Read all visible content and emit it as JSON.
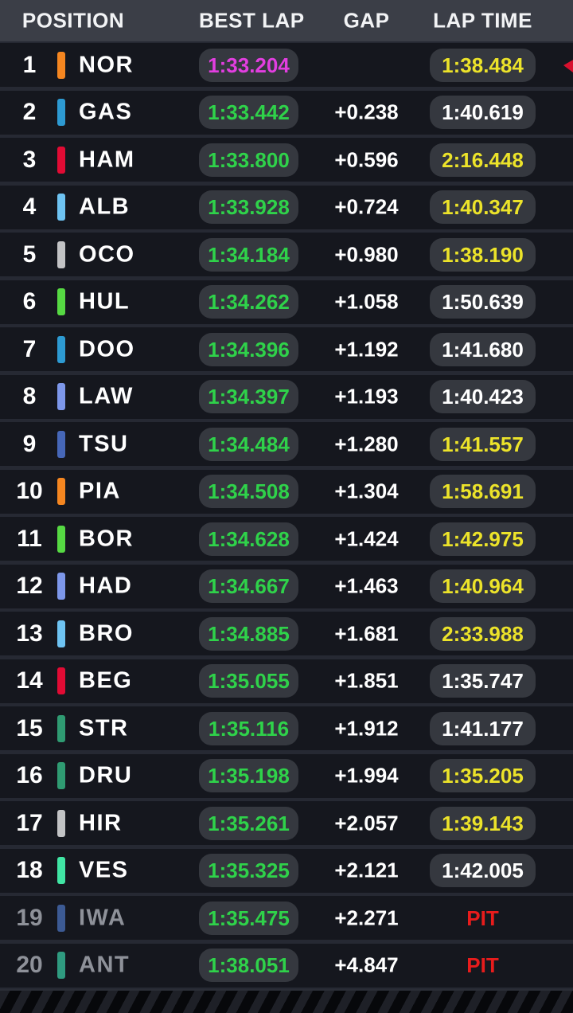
{
  "header": {
    "position_label": "POSITION",
    "best_lap_label": "BEST LAP",
    "gap_label": "GAP",
    "lap_time_label": "LAP TIME"
  },
  "palette": {
    "row_bg": "#15171e",
    "separator_bg": "#262933",
    "header_bg": "#3b3e47",
    "pill_bg": "#35383f",
    "green": "#2fd24a",
    "purple": "#e23ee0",
    "yellow": "#ece32a",
    "white": "#ffffff",
    "red": "#e81c1c",
    "muted": "#8e9199"
  },
  "table": {
    "rows": [
      {
        "pos": "1",
        "code": "NOR",
        "team_color": "#F58620",
        "best": "1:33.204",
        "best_color": "purple",
        "gap": "",
        "lap": "1:38.484",
        "lap_color": "yellow",
        "lap_pill": true,
        "muted": false,
        "edge_marker": true
      },
      {
        "pos": "2",
        "code": "GAS",
        "team_color": "#2D9AD2",
        "best": "1:33.442",
        "best_color": "green",
        "gap": "+0.238",
        "lap": "1:40.619",
        "lap_color": "white",
        "lap_pill": true,
        "muted": false,
        "edge_marker": false
      },
      {
        "pos": "3",
        "code": "HAM",
        "team_color": "#E10B34",
        "best": "1:33.800",
        "best_color": "green",
        "gap": "+0.596",
        "lap": "2:16.448",
        "lap_color": "yellow",
        "lap_pill": true,
        "muted": false,
        "edge_marker": false
      },
      {
        "pos": "4",
        "code": "ALB",
        "team_color": "#6EC3F2",
        "best": "1:33.928",
        "best_color": "green",
        "gap": "+0.724",
        "lap": "1:40.347",
        "lap_color": "yellow",
        "lap_pill": true,
        "muted": false,
        "edge_marker": false
      },
      {
        "pos": "5",
        "code": "OCO",
        "team_color": "#C2C3C5",
        "best": "1:34.184",
        "best_color": "green",
        "gap": "+0.980",
        "lap": "1:38.190",
        "lap_color": "yellow",
        "lap_pill": true,
        "muted": false,
        "edge_marker": false
      },
      {
        "pos": "6",
        "code": "HUL",
        "team_color": "#56D943",
        "best": "1:34.262",
        "best_color": "green",
        "gap": "+1.058",
        "lap": "1:50.639",
        "lap_color": "white",
        "lap_pill": true,
        "muted": false,
        "edge_marker": false
      },
      {
        "pos": "7",
        "code": "DOO",
        "team_color": "#2D9AD2",
        "best": "1:34.396",
        "best_color": "green",
        "gap": "+1.192",
        "lap": "1:41.680",
        "lap_color": "white",
        "lap_pill": true,
        "muted": false,
        "edge_marker": false
      },
      {
        "pos": "8",
        "code": "LAW",
        "team_color": "#7D97EA",
        "best": "1:34.397",
        "best_color": "green",
        "gap": "+1.193",
        "lap": "1:40.423",
        "lap_color": "white",
        "lap_pill": true,
        "muted": false,
        "edge_marker": false
      },
      {
        "pos": "9",
        "code": "TSU",
        "team_color": "#4667B8",
        "best": "1:34.484",
        "best_color": "green",
        "gap": "+1.280",
        "lap": "1:41.557",
        "lap_color": "yellow",
        "lap_pill": true,
        "muted": false,
        "edge_marker": false
      },
      {
        "pos": "10",
        "code": "PIA",
        "team_color": "#F58620",
        "best": "1:34.508",
        "best_color": "green",
        "gap": "+1.304",
        "lap": "1:58.691",
        "lap_color": "yellow",
        "lap_pill": true,
        "muted": false,
        "edge_marker": false
      },
      {
        "pos": "11",
        "code": "BOR",
        "team_color": "#56D943",
        "best": "1:34.628",
        "best_color": "green",
        "gap": "+1.424",
        "lap": "1:42.975",
        "lap_color": "yellow",
        "lap_pill": true,
        "muted": false,
        "edge_marker": false
      },
      {
        "pos": "12",
        "code": "HAD",
        "team_color": "#7D97EA",
        "best": "1:34.667",
        "best_color": "green",
        "gap": "+1.463",
        "lap": "1:40.964",
        "lap_color": "yellow",
        "lap_pill": true,
        "muted": false,
        "edge_marker": false
      },
      {
        "pos": "13",
        "code": "BRO",
        "team_color": "#6EC3F2",
        "best": "1:34.885",
        "best_color": "green",
        "gap": "+1.681",
        "lap": "2:33.988",
        "lap_color": "yellow",
        "lap_pill": true,
        "muted": false,
        "edge_marker": false
      },
      {
        "pos": "14",
        "code": "BEG",
        "team_color": "#E10B34",
        "best": "1:35.055",
        "best_color": "green",
        "gap": "+1.851",
        "lap": "1:35.747",
        "lap_color": "white",
        "lap_pill": true,
        "muted": false,
        "edge_marker": false
      },
      {
        "pos": "15",
        "code": "STR",
        "team_color": "#2F9B72",
        "best": "1:35.116",
        "best_color": "green",
        "gap": "+1.912",
        "lap": "1:41.177",
        "lap_color": "white",
        "lap_pill": true,
        "muted": false,
        "edge_marker": false
      },
      {
        "pos": "16",
        "code": "DRU",
        "team_color": "#2F9B72",
        "best": "1:35.198",
        "best_color": "green",
        "gap": "+1.994",
        "lap": "1:35.205",
        "lap_color": "yellow",
        "lap_pill": true,
        "muted": false,
        "edge_marker": false
      },
      {
        "pos": "17",
        "code": "HIR",
        "team_color": "#C2C3C5",
        "best": "1:35.261",
        "best_color": "green",
        "gap": "+2.057",
        "lap": "1:39.143",
        "lap_color": "yellow",
        "lap_pill": true,
        "muted": false,
        "edge_marker": false
      },
      {
        "pos": "18",
        "code": "VES",
        "team_color": "#40E5A4",
        "best": "1:35.325",
        "best_color": "green",
        "gap": "+2.121",
        "lap": "1:42.005",
        "lap_color": "white",
        "lap_pill": true,
        "muted": false,
        "edge_marker": false
      },
      {
        "pos": "19",
        "code": "IWA",
        "team_color": "#3C5A94",
        "best": "1:35.475",
        "best_color": "green",
        "gap": "+2.271",
        "lap": "PIT",
        "lap_color": "red",
        "lap_pill": false,
        "muted": true,
        "edge_marker": false
      },
      {
        "pos": "20",
        "code": "ANT",
        "team_color": "#2F9B80",
        "best": "1:38.051",
        "best_color": "green",
        "gap": "+4.847",
        "lap": "PIT",
        "lap_color": "red",
        "lap_pill": false,
        "muted": true,
        "edge_marker": false
      }
    ]
  }
}
